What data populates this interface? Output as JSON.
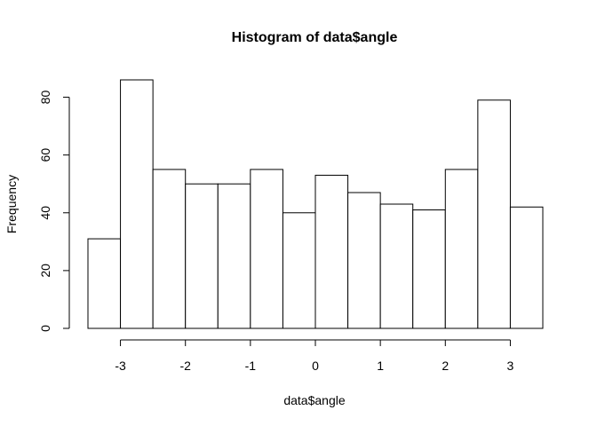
{
  "chart_data": {
    "type": "bar",
    "title": "Histogram of data$angle",
    "xlabel": "data$angle",
    "ylabel": "Frequency",
    "bin_width": 0.5,
    "bins": [
      {
        "start": -3.5,
        "end": -3.0,
        "count": 31
      },
      {
        "start": -3.0,
        "end": -2.5,
        "count": 86
      },
      {
        "start": -2.5,
        "end": -2.0,
        "count": 55
      },
      {
        "start": -2.0,
        "end": -1.5,
        "count": 50
      },
      {
        "start": -1.5,
        "end": -1.0,
        "count": 50
      },
      {
        "start": -1.0,
        "end": -0.5,
        "count": 55
      },
      {
        "start": -0.5,
        "end": 0.0,
        "count": 40
      },
      {
        "start": 0.0,
        "end": 0.5,
        "count": 53
      },
      {
        "start": 0.5,
        "end": 1.0,
        "count": 47
      },
      {
        "start": 1.0,
        "end": 1.5,
        "count": 43
      },
      {
        "start": 1.5,
        "end": 2.0,
        "count": 41
      },
      {
        "start": 2.0,
        "end": 2.5,
        "count": 55
      },
      {
        "start": 2.5,
        "end": 3.0,
        "count": 79
      },
      {
        "start": 3.0,
        "end": 3.5,
        "count": 42
      }
    ],
    "xlim": [
      -3.5,
      3.5
    ],
    "ylim": [
      0,
      86
    ],
    "x_ticks": [
      -3,
      -2,
      -1,
      0,
      1,
      2,
      3
    ],
    "x_tick_labels": [
      "-3",
      "-2",
      "-1",
      "0",
      "1",
      "2",
      "3"
    ],
    "y_ticks": [
      0,
      20,
      40,
      60,
      80
    ],
    "y_tick_labels": [
      "0",
      "20",
      "40",
      "60",
      "80"
    ],
    "grid": false,
    "legend": "none",
    "bar_fill": "#ffffff",
    "bar_stroke": "#000000"
  }
}
